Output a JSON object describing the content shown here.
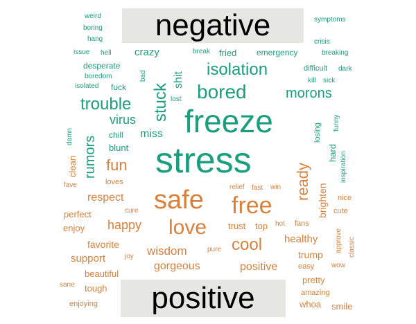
{
  "colors": {
    "negative": "#1a9e7e",
    "positive": "#d9803b",
    "banner_bg": "#e6e6e2",
    "banner_text": "#000000"
  },
  "labels": {
    "negative": "negative",
    "positive": "positive"
  },
  "negative_words": [
    {
      "text": "weird",
      "size": 10
    },
    {
      "text": "boring",
      "size": 10
    },
    {
      "text": "hang",
      "size": 10
    },
    {
      "text": "issue",
      "size": 10
    },
    {
      "text": "hell",
      "size": 10
    },
    {
      "text": "crazy",
      "size": 15
    },
    {
      "text": "break",
      "size": 10
    },
    {
      "text": "fried",
      "size": 13
    },
    {
      "text": "emergency",
      "size": 12
    },
    {
      "text": "symptoms",
      "size": 10
    },
    {
      "text": "crisis",
      "size": 10
    },
    {
      "text": "breaking",
      "size": 10
    },
    {
      "text": "desperate",
      "size": 12
    },
    {
      "text": "bad",
      "size": 10
    },
    {
      "text": "boredom",
      "size": 10
    },
    {
      "text": "isolated",
      "size": 10
    },
    {
      "text": "fuck",
      "size": 12
    },
    {
      "text": "stuck",
      "size": 24
    },
    {
      "text": "shit",
      "size": 16
    },
    {
      "text": "isolation",
      "size": 24
    },
    {
      "text": "difficult",
      "size": 11
    },
    {
      "text": "dark",
      "size": 10
    },
    {
      "text": "kill",
      "size": 10
    },
    {
      "text": "sick",
      "size": 10
    },
    {
      "text": "bored",
      "size": 28
    },
    {
      "text": "morons",
      "size": 20
    },
    {
      "text": "lost",
      "size": 10
    },
    {
      "text": "trouble",
      "size": 24
    },
    {
      "text": "freeze",
      "size": 46
    },
    {
      "text": "funny",
      "size": 10
    },
    {
      "text": "damn",
      "size": 10
    },
    {
      "text": "virus",
      "size": 18
    },
    {
      "text": "chill",
      "size": 12
    },
    {
      "text": "miss",
      "size": 16
    },
    {
      "text": "rumors",
      "size": 20
    },
    {
      "text": "blunt",
      "size": 13
    },
    {
      "text": "losing",
      "size": 11
    },
    {
      "text": "hard",
      "size": 13
    },
    {
      "text": "stress",
      "size": 52
    },
    {
      "text": "inspiration",
      "size": 10
    }
  ],
  "positive_words": [
    {
      "text": "clean",
      "size": 13
    },
    {
      "text": "fun",
      "size": 22
    },
    {
      "text": "ready",
      "size": 22
    },
    {
      "text": "loves",
      "size": 11
    },
    {
      "text": "fave",
      "size": 10
    },
    {
      "text": "relief",
      "size": 10
    },
    {
      "text": "fast",
      "size": 10
    },
    {
      "text": "win",
      "size": 10
    },
    {
      "text": "respect",
      "size": 16
    },
    {
      "text": "safe",
      "size": 38
    },
    {
      "text": "free",
      "size": 34
    },
    {
      "text": "brighten",
      "size": 14
    },
    {
      "text": "nice",
      "size": 11
    },
    {
      "text": "perfect",
      "size": 13
    },
    {
      "text": "cure",
      "size": 10
    },
    {
      "text": "cute",
      "size": 11
    },
    {
      "text": "enjoy",
      "size": 13
    },
    {
      "text": "happy",
      "size": 18
    },
    {
      "text": "love",
      "size": 30
    },
    {
      "text": "trust",
      "size": 13
    },
    {
      "text": "top",
      "size": 13
    },
    {
      "text": "hot",
      "size": 10
    },
    {
      "text": "fans",
      "size": 11
    },
    {
      "text": "approve",
      "size": 10
    },
    {
      "text": "favorite",
      "size": 14
    },
    {
      "text": "cool",
      "size": 24
    },
    {
      "text": "healthy",
      "size": 15
    },
    {
      "text": "classic",
      "size": 10
    },
    {
      "text": "wisdom",
      "size": 17
    },
    {
      "text": "pure",
      "size": 10
    },
    {
      "text": "support",
      "size": 15
    },
    {
      "text": "joy",
      "size": 10
    },
    {
      "text": "trump",
      "size": 14
    },
    {
      "text": "gorgeous",
      "size": 16
    },
    {
      "text": "positive",
      "size": 16
    },
    {
      "text": "easy",
      "size": 11
    },
    {
      "text": "wow",
      "size": 10
    },
    {
      "text": "beautiful",
      "size": 13
    },
    {
      "text": "pretty",
      "size": 13
    },
    {
      "text": "sane",
      "size": 10
    },
    {
      "text": "tough",
      "size": 13
    },
    {
      "text": "amazing",
      "size": 11
    },
    {
      "text": "enjoying",
      "size": 11
    },
    {
      "text": "whoa",
      "size": 13
    },
    {
      "text": "smile",
      "size": 13
    }
  ]
}
